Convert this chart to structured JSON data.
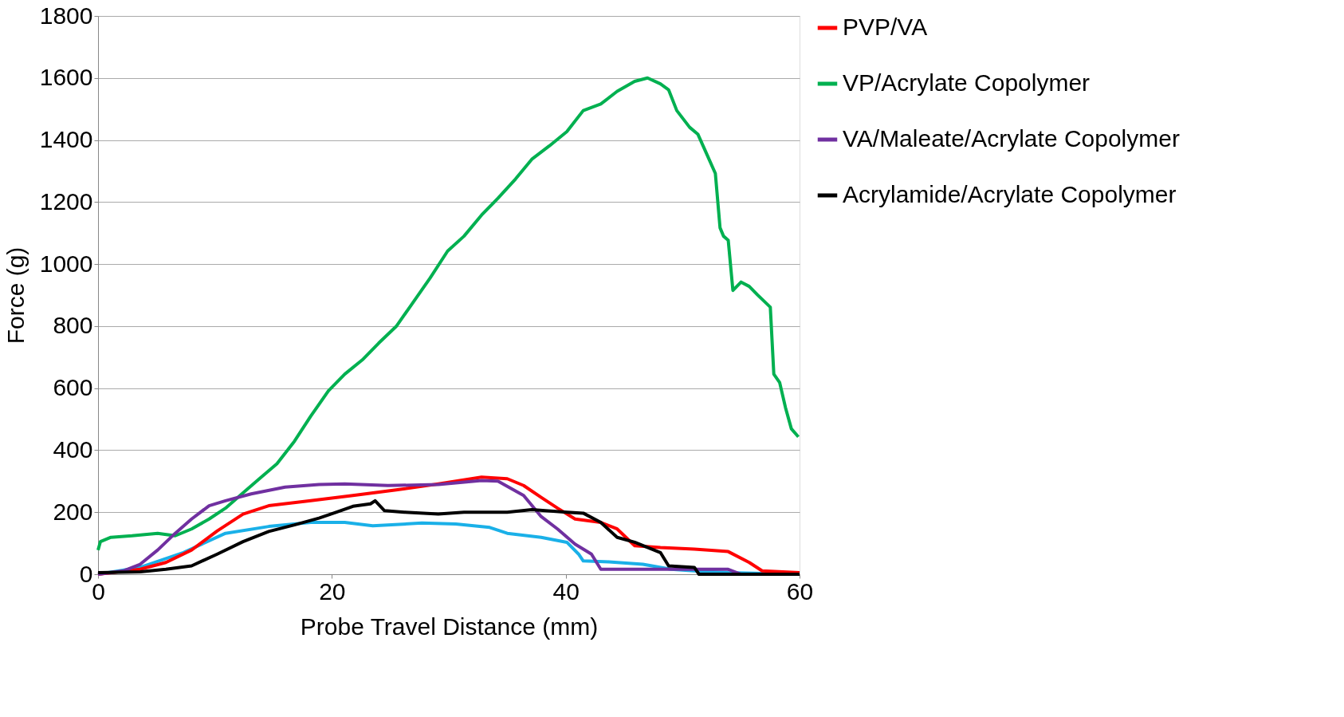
{
  "chart_data": {
    "type": "line",
    "xlabel": "Probe Travel Distance (mm)",
    "ylabel": "Force (g)",
    "xlim": [
      0,
      60
    ],
    "xticks": [
      0,
      20,
      40,
      60
    ],
    "ylim": [
      0,
      1800
    ],
    "yticks": [
      0,
      200,
      400,
      600,
      800,
      1000,
      1200,
      1400,
      1600,
      1800
    ],
    "grid": "y",
    "legend": "right",
    "series": [
      {
        "color": "#1ab0e8",
        "x": [
          0,
          3.6,
          7.3,
          10.9,
          14.6,
          18.2,
          21.1,
          23.5,
          27.7,
          30.6,
          33.5,
          35,
          37.9,
          40.1,
          41.1,
          41.5,
          43.7,
          46.6,
          49,
          51,
          53.9,
          60
        ],
        "values": [
          0,
          22,
          70,
          132,
          154,
          167,
          167,
          156,
          165,
          162,
          151,
          132,
          119,
          103,
          65,
          43,
          40,
          32,
          16,
          11,
          5,
          0
        ]
      },
      {
        "name": "PVP/VA",
        "color": "#ff0000",
        "x": [
          0,
          3.6,
          5.8,
          8,
          10.2,
          12.4,
          14.6,
          18.2,
          21.8,
          25.5,
          29.1,
          32.8,
          35,
          36.4,
          37.9,
          39.3,
          40.8,
          43,
          44.4,
          45.9,
          48.1,
          51,
          53.9,
          55.7,
          56.8,
          60
        ],
        "values": [
          0,
          16,
          38,
          78,
          140,
          194,
          221,
          237,
          254,
          272,
          291,
          313,
          308,
          286,
          248,
          213,
          178,
          167,
          146,
          92,
          86,
          81,
          73,
          38,
          11,
          5
        ]
      },
      {
        "name": "VP/Acrylate Copolymer",
        "color": "#00b050",
        "x": [
          0,
          0.2,
          1.1,
          2.9,
          5.1,
          6.6,
          8,
          9.5,
          10.9,
          12.4,
          13.8,
          15.3,
          16.8,
          18.2,
          19.7,
          21.1,
          22.6,
          24,
          25.5,
          26.9,
          28.4,
          29.9,
          31.3,
          32.8,
          34.2,
          35.7,
          37.1,
          38.6,
          40.1,
          41.5,
          43,
          44.4,
          45.9,
          47,
          48.1,
          48.8,
          49.5,
          50.6,
          51.3,
          52,
          52.8,
          53.2,
          53.5,
          53.9,
          54.3,
          55,
          55.7,
          56.4,
          57.5,
          57.8,
          58.3,
          58.8,
          59.3,
          59.9
        ],
        "values": [
          78,
          105,
          119,
          124,
          132,
          124,
          146,
          178,
          213,
          262,
          308,
          356,
          429,
          510,
          591,
          645,
          691,
          745,
          799,
          874,
          955,
          1042,
          1090,
          1158,
          1212,
          1274,
          1338,
          1381,
          1427,
          1495,
          1516,
          1557,
          1589,
          1600,
          1581,
          1562,
          1495,
          1441,
          1419,
          1360,
          1292,
          1117,
          1090,
          1077,
          915,
          942,
          928,
          901,
          861,
          645,
          618,
          537,
          469,
          443
        ]
      },
      {
        "name": "VA/Maleate/Acrylate Copolymer",
        "color": "#7030a0",
        "x": [
          0,
          2.2,
          3.6,
          5.1,
          6.6,
          8,
          9.5,
          10.9,
          13.1,
          16,
          18.9,
          21.1,
          24.8,
          29.1,
          32.8,
          34.2,
          36.4,
          37.9,
          39.3,
          40.8,
          42.2,
          43,
          45.2,
          53.9,
          55,
          60
        ],
        "values": [
          0,
          11,
          32,
          78,
          132,
          178,
          221,
          237,
          259,
          281,
          289,
          291,
          286,
          289,
          302,
          300,
          254,
          186,
          146,
          97,
          65,
          16,
          16,
          16,
          0,
          0
        ]
      },
      {
        "name": "Acrylamide/Acrylate Copolymer",
        "color": "#000000",
        "x": [
          0,
          3.6,
          5.8,
          8,
          10.2,
          12.4,
          14.6,
          16.8,
          18.9,
          20.4,
          21.8,
          23.3,
          23.7,
          24.5,
          26.2,
          29.1,
          31.3,
          35,
          37.1,
          40.1,
          41.5,
          43,
          44.4,
          45.9,
          48.1,
          48.8,
          51,
          51.4,
          60
        ],
        "values": [
          5,
          8,
          16,
          27,
          65,
          105,
          138,
          159,
          181,
          200,
          219,
          227,
          237,
          205,
          200,
          194,
          200,
          200,
          208,
          200,
          197,
          167,
          119,
          103,
          70,
          27,
          22,
          0,
          0
        ]
      }
    ]
  }
}
